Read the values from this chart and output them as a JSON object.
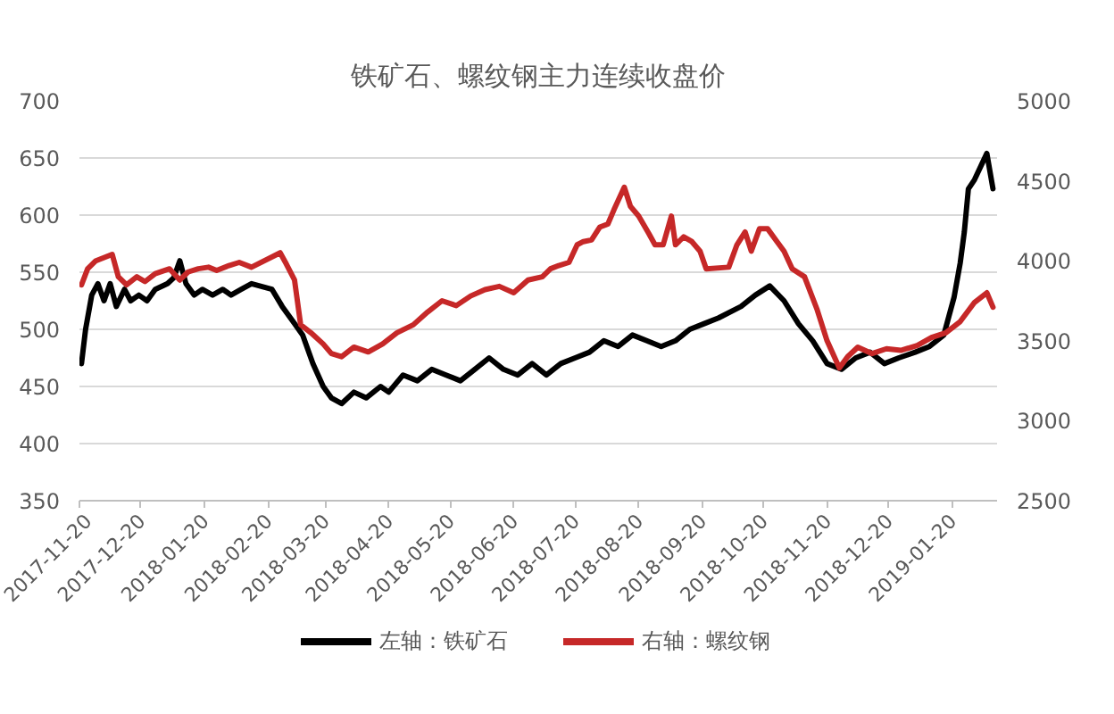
{
  "chart_data": {
    "type": "line",
    "title": "铁矿石、螺纹钢主力连续收盘价",
    "series": [
      {
        "name": "左轴：铁矿石",
        "color": "#000000",
        "x": [
          "2017-11-21",
          "2017-11-23",
          "2017-11-26",
          "2017-11-29",
          "2017-12-02",
          "2017-12-05",
          "2017-12-08",
          "2017-12-12",
          "2017-12-15",
          "2017-12-19",
          "2017-12-23",
          "2017-12-27",
          "2018-01-02",
          "2018-01-05",
          "2018-01-08",
          "2018-01-11",
          "2018-01-15",
          "2018-01-19",
          "2018-01-24",
          "2018-01-29",
          "2018-02-02",
          "2018-02-07",
          "2018-02-12",
          "2018-02-22",
          "2018-02-27",
          "2018-03-05",
          "2018-03-09",
          "2018-03-14",
          "2018-03-19",
          "2018-03-23",
          "2018-03-28",
          "2018-04-03",
          "2018-04-09",
          "2018-04-16",
          "2018-04-20",
          "2018-04-27",
          "2018-05-04",
          "2018-05-11",
          "2018-05-18",
          "2018-05-25",
          "2018-06-01",
          "2018-06-08",
          "2018-06-15",
          "2018-06-22",
          "2018-06-29",
          "2018-07-06",
          "2018-07-13",
          "2018-07-20",
          "2018-07-27",
          "2018-08-03",
          "2018-08-10",
          "2018-08-17",
          "2018-08-24",
          "2018-08-31",
          "2018-09-07",
          "2018-09-14",
          "2018-09-21",
          "2018-09-28",
          "2018-10-09",
          "2018-10-16",
          "2018-10-23",
          "2018-10-30",
          "2018-11-06",
          "2018-11-13",
          "2018-11-20",
          "2018-11-27",
          "2018-12-04",
          "2018-12-11",
          "2018-12-18",
          "2018-12-25",
          "2019-01-02",
          "2019-01-09",
          "2019-01-16",
          "2019-01-21",
          "2019-01-24",
          "2019-01-26",
          "2019-01-28",
          "2019-01-31",
          "2019-02-06",
          "2019-02-09"
        ],
        "values": [
          470,
          500,
          530,
          540,
          525,
          540,
          520,
          535,
          525,
          530,
          525,
          535,
          540,
          545,
          560,
          540,
          530,
          535,
          530,
          535,
          530,
          535,
          540,
          535,
          520,
          505,
          495,
          470,
          450,
          440,
          435,
          445,
          440,
          450,
          445,
          460,
          455,
          465,
          460,
          455,
          465,
          475,
          465,
          460,
          470,
          460,
          470,
          475,
          480,
          490,
          485,
          495,
          490,
          485,
          490,
          500,
          505,
          510,
          520,
          530,
          538,
          525,
          505,
          490,
          470,
          465,
          475,
          480,
          470,
          475,
          480,
          485,
          495,
          528,
          558,
          585,
          623,
          631,
          654,
          623
        ]
      },
      {
        "name": "右轴：螺纹钢",
        "color": "#c62828",
        "axis": "y2",
        "x": [
          "2017-11-21",
          "2017-11-24",
          "2017-11-28",
          "2017-12-06",
          "2017-12-09",
          "2017-12-13",
          "2017-12-18",
          "2017-12-22",
          "2017-12-27",
          "2018-01-03",
          "2018-01-08",
          "2018-01-12",
          "2018-01-17",
          "2018-01-22",
          "2018-01-26",
          "2018-02-01",
          "2018-02-06",
          "2018-02-12",
          "2018-02-26",
          "2018-03-01",
          "2018-03-05",
          "2018-03-08",
          "2018-03-13",
          "2018-03-19",
          "2018-03-23",
          "2018-03-28",
          "2018-04-03",
          "2018-04-10",
          "2018-04-17",
          "2018-04-24",
          "2018-05-02",
          "2018-05-09",
          "2018-05-16",
          "2018-05-23",
          "2018-05-30",
          "2018-06-06",
          "2018-06-13",
          "2018-06-20",
          "2018-06-27",
          "2018-07-04",
          "2018-07-08",
          "2018-07-12",
          "2018-07-17",
          "2018-07-21",
          "2018-07-24",
          "2018-07-28",
          "2018-08-01",
          "2018-08-05",
          "2018-08-08",
          "2018-08-13",
          "2018-08-16",
          "2018-08-20",
          "2018-08-25",
          "2018-08-28",
          "2018-09-01",
          "2018-09-05",
          "2018-09-07",
          "2018-09-11",
          "2018-09-15",
          "2018-09-19",
          "2018-09-22",
          "2018-10-03",
          "2018-10-07",
          "2018-10-11",
          "2018-10-14",
          "2018-10-18",
          "2018-10-22",
          "2018-10-26",
          "2018-10-30",
          "2018-11-03",
          "2018-11-09",
          "2018-11-15",
          "2018-11-20",
          "2018-11-26",
          "2018-11-30",
          "2018-12-05",
          "2018-12-12",
          "2018-12-19",
          "2018-12-26",
          "2019-01-03",
          "2019-01-10",
          "2019-01-17",
          "2019-01-24",
          "2019-01-31",
          "2019-02-06",
          "2019-02-09"
        ],
        "values": [
          3850,
          3950,
          4000,
          4040,
          3900,
          3850,
          3900,
          3870,
          3920,
          3950,
          3880,
          3930,
          3950,
          3960,
          3940,
          3970,
          3990,
          3960,
          4050,
          3980,
          3880,
          3600,
          3550,
          3480,
          3420,
          3400,
          3460,
          3430,
          3480,
          3550,
          3600,
          3680,
          3750,
          3720,
          3780,
          3820,
          3840,
          3800,
          3880,
          3900,
          3950,
          3970,
          3990,
          4100,
          4120,
          4130,
          4210,
          4230,
          4320,
          4460,
          4340,
          4280,
          4170,
          4100,
          4100,
          4280,
          4100,
          4150,
          4120,
          4060,
          3950,
          3960,
          4100,
          4180,
          4060,
          4200,
          4200,
          4130,
          4060,
          3950,
          3900,
          3700,
          3500,
          3330,
          3400,
          3460,
          3420,
          3450,
          3440,
          3470,
          3520,
          3550,
          3620,
          3740,
          3800,
          3710
        ]
      }
    ],
    "xlim": [
      "2017-11-20",
      "2019-02-11"
    ],
    "xticks": [
      "2017-11-20",
      "2017-12-20",
      "2018-01-20",
      "2018-02-20",
      "2018-03-20",
      "2018-04-20",
      "2018-05-20",
      "2018-06-20",
      "2018-07-20",
      "2018-08-20",
      "2018-09-20",
      "2018-10-20",
      "2018-11-20",
      "2018-12-20",
      "2019-01-20"
    ],
    "ylim": [
      350,
      700
    ],
    "yticks": [
      350,
      400,
      450,
      500,
      550,
      600,
      650,
      700
    ],
    "y2lim": [
      2500,
      5000
    ],
    "y2ticks": [
      2500,
      3000,
      3500,
      4000,
      4500,
      5000
    ],
    "grid": "y",
    "legend": "bottom"
  }
}
